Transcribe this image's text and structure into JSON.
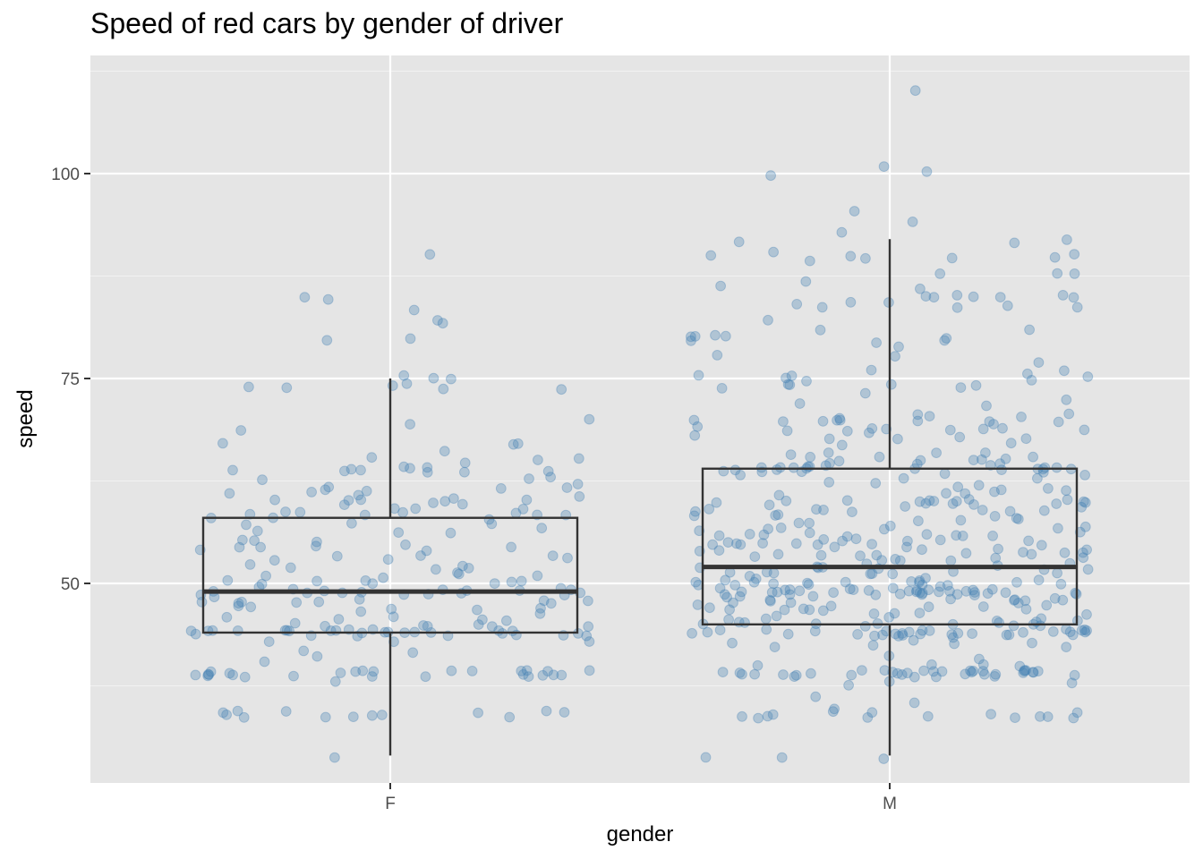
{
  "chart_data": {
    "type": "boxplot",
    "title": "Speed of red cars by gender of driver",
    "xlabel": "gender",
    "ylabel": "speed",
    "categories": [
      "F",
      "M"
    ],
    "ylim": [
      27.5,
      112.5
    ],
    "y_ticks": [
      50,
      75,
      100
    ],
    "y_minor_ticks": [
      37.5,
      62.5,
      87.5,
      112.5
    ],
    "grid": true,
    "point_color": "#4682b4",
    "panel_background": "#e5e5e5",
    "boxes": [
      {
        "category": "F",
        "lower_whisker": 29,
        "q1": 44,
        "median": 49,
        "q3": 58,
        "upper_whisker": 75
      },
      {
        "category": "M",
        "lower_whisker": 29,
        "q1": 45,
        "median": 52,
        "q3": 64,
        "upper_whisker": 92
      }
    ],
    "points": [
      {
        "category": "F",
        "values": [
          75,
          75,
          75,
          74,
          74,
          74,
          74,
          74,
          74,
          85,
          85,
          90,
          82,
          83,
          82,
          80,
          80,
          69,
          69,
          70,
          67,
          67,
          67,
          66,
          65,
          65,
          65,
          65,
          64,
          64,
          64,
          64,
          64,
          64,
          64,
          64,
          64,
          64,
          63,
          63,
          63,
          62,
          62,
          62,
          62,
          61,
          61,
          61,
          61,
          61,
          61,
          60,
          60,
          60,
          60,
          60,
          60,
          60,
          60,
          60,
          59,
          59,
          59,
          59,
          59,
          59,
          59,
          58,
          58,
          58,
          58,
          58,
          58,
          58,
          57,
          57,
          57,
          57,
          56,
          56,
          56,
          55,
          55,
          55,
          55,
          55,
          54,
          54,
          54,
          54,
          54,
          53,
          53,
          53,
          53,
          53,
          53,
          52,
          52,
          52,
          52,
          52,
          51,
          51,
          51,
          51,
          51,
          50,
          50,
          50,
          50,
          50,
          50,
          50,
          50,
          50,
          49,
          49,
          49,
          49,
          49,
          49,
          49,
          49,
          49,
          49,
          49,
          49,
          49,
          49,
          49,
          49,
          49,
          48,
          48,
          48,
          48,
          48,
          48,
          48,
          48,
          48,
          48,
          47,
          47,
          47,
          47,
          47,
          47,
          46,
          46,
          46,
          46,
          46,
          45,
          45,
          45,
          45,
          45,
          45,
          45,
          45,
          44,
          44,
          44,
          44,
          44,
          44,
          44,
          44,
          44,
          44,
          44,
          44,
          44,
          44,
          44,
          44,
          44,
          44,
          44,
          44,
          44,
          44,
          44,
          44,
          44,
          44,
          44,
          44,
          43,
          43,
          43,
          42,
          42,
          41,
          40,
          39,
          39,
          39,
          39,
          39,
          39,
          39,
          39,
          39,
          39,
          39,
          39,
          39,
          39,
          39,
          39,
          39,
          39,
          39,
          39,
          39,
          39,
          39,
          39,
          39,
          39,
          38,
          34,
          34,
          34,
          34,
          34,
          34,
          34,
          34,
          34,
          34,
          34,
          34,
          34,
          29
        ]
      },
      {
        "category": "M",
        "values": [
          110,
          101,
          100,
          100,
          95,
          94,
          93,
          92,
          92,
          92,
          90,
          90,
          90,
          90,
          90,
          90,
          90,
          89,
          88,
          88,
          88,
          87,
          86,
          86,
          85,
          85,
          85,
          85,
          85,
          85,
          85,
          84,
          84,
          84,
          84,
          84,
          84,
          84,
          82,
          81,
          81,
          80,
          80,
          80,
          80,
          80,
          80,
          80,
          79,
          79,
          78,
          78,
          77,
          76,
          76,
          76,
          75,
          75,
          75,
          75,
          75,
          75,
          74,
          74,
          74,
          74,
          74,
          74,
          73,
          72,
          72,
          72,
          71,
          71,
          70,
          70,
          70,
          70,
          70,
          70,
          70,
          70,
          70,
          70,
          70,
          69,
          69,
          69,
          69,
          69,
          69,
          69,
          69,
          69,
          69,
          68,
          68,
          68,
          68,
          68,
          68,
          67,
          67,
          66,
          66,
          66,
          66,
          65,
          65,
          65,
          65,
          65,
          65,
          65,
          65,
          65,
          65,
          65,
          64,
          64,
          64,
          64,
          64,
          64,
          64,
          64,
          64,
          64,
          64,
          64,
          64,
          64,
          64,
          64,
          64,
          64,
          64,
          64,
          64,
          63,
          63,
          63,
          63,
          63,
          62,
          62,
          62,
          62,
          62,
          61,
          61,
          61,
          61,
          61,
          61,
          60,
          60,
          60,
          60,
          60,
          60,
          60,
          60,
          60,
          60,
          60,
          60,
          60,
          60,
          60,
          60,
          59,
          59,
          59,
          59,
          59,
          59,
          59,
          59,
          59,
          59,
          58,
          58,
          58,
          58,
          58,
          58,
          58,
          58,
          57,
          57,
          57,
          57,
          57,
          57,
          57,
          57,
          56,
          56,
          56,
          56,
          56,
          56,
          56,
          56,
          56,
          56,
          56,
          55,
          55,
          55,
          55,
          55,
          55,
          55,
          55,
          55,
          55,
          55,
          55,
          55,
          55,
          55,
          54,
          54,
          54,
          54,
          54,
          54,
          54,
          54,
          54,
          54,
          54,
          54,
          54,
          53,
          53,
          53,
          53,
          53,
          53,
          53,
          53,
          53,
          53,
          52,
          52,
          52,
          52,
          52,
          52,
          52,
          52,
          52,
          52,
          51,
          51,
          51,
          51,
          51,
          51,
          51,
          51,
          51,
          51,
          51,
          50,
          50,
          50,
          50,
          50,
          50,
          50,
          50,
          50,
          50,
          50,
          50,
          50,
          50,
          50,
          50,
          50,
          50,
          49,
          49,
          49,
          49,
          49,
          49,
          49,
          49,
          49,
          49,
          49,
          49,
          49,
          49,
          49,
          49,
          49,
          49,
          49,
          49,
          49,
          49,
          49,
          49,
          49,
          49,
          49,
          49,
          49,
          49,
          49,
          49,
          49,
          49,
          49,
          48,
          48,
          48,
          48,
          48,
          48,
          48,
          48,
          48,
          48,
          48,
          48,
          48,
          48,
          47,
          47,
          47,
          47,
          47,
          47,
          47,
          47,
          47,
          47,
          47,
          47,
          46,
          46,
          46,
          46,
          46,
          46,
          46,
          46,
          46,
          45,
          45,
          45,
          45,
          45,
          45,
          45,
          45,
          45,
          45,
          45,
          45,
          45,
          45,
          44,
          44,
          44,
          44,
          44,
          44,
          44,
          44,
          44,
          44,
          44,
          44,
          44,
          44,
          44,
          44,
          44,
          44,
          44,
          44,
          44,
          44,
          44,
          44,
          44,
          44,
          44,
          44,
          44,
          44,
          44,
          44,
          43,
          43,
          43,
          43,
          43,
          42,
          42,
          42,
          41,
          41,
          40,
          40,
          40,
          40,
          39,
          39,
          39,
          39,
          39,
          39,
          39,
          39,
          39,
          39,
          39,
          39,
          39,
          39,
          39,
          39,
          39,
          39,
          39,
          39,
          39,
          39,
          39,
          39,
          39,
          39,
          39,
          39,
          39,
          39,
          39,
          39,
          39,
          39,
          39,
          39,
          38,
          38,
          38,
          36,
          35,
          35,
          34,
          34,
          34,
          34,
          34,
          34,
          34,
          34,
          34,
          34,
          34,
          34,
          34,
          34,
          29,
          29,
          29
        ]
      }
    ]
  }
}
